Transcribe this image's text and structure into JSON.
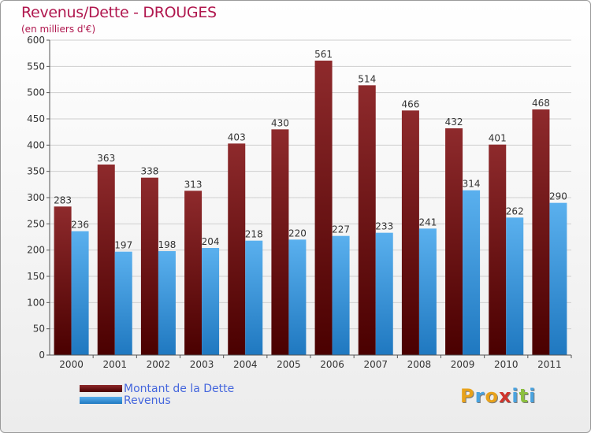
{
  "header": {
    "title": "Revenus/Dette - DROUGES",
    "subtitle": "(en milliers d'€)"
  },
  "chart_data": {
    "type": "bar",
    "categories": [
      "2000",
      "2001",
      "2002",
      "2003",
      "2004",
      "2005",
      "2006",
      "2007",
      "2008",
      "2009",
      "2010",
      "2011"
    ],
    "series": [
      {
        "name": "Montant de la Dette",
        "color": "#7a1a1c",
        "values": [
          283,
          363,
          338,
          313,
          403,
          430,
          561,
          514,
          466,
          432,
          401,
          468
        ]
      },
      {
        "name": "Revenus",
        "color": "#3a9ae0",
        "values": [
          236,
          197,
          198,
          204,
          218,
          220,
          227,
          233,
          241,
          314,
          262,
          290
        ]
      }
    ],
    "ylim": [
      0,
      600
    ],
    "yticks": [
      0,
      50,
      100,
      150,
      200,
      250,
      300,
      350,
      400,
      450,
      500,
      550,
      600
    ],
    "grid": true,
    "legend_position": "bottom-left"
  },
  "logo": {
    "letters": [
      "P",
      "r",
      "o",
      "x",
      "i",
      "t",
      "i"
    ],
    "colors": [
      "#e8a21b",
      "#4aa3df",
      "#e8a21b",
      "#d0342c",
      "#4aa3df",
      "#8cbf3f",
      "#4aa3df"
    ]
  }
}
